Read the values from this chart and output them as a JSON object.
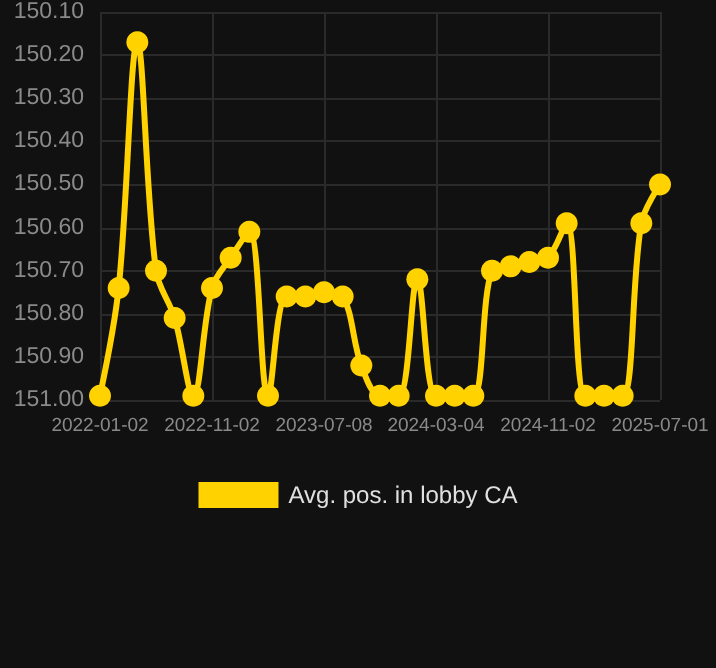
{
  "chart_data": {
    "type": "line",
    "categories": [
      "2022-01-02",
      null,
      null,
      null,
      null,
      null,
      "2022-11-02",
      null,
      null,
      null,
      null,
      null,
      "2023-07-08",
      null,
      null,
      null,
      null,
      null,
      "2024-03-04",
      null,
      null,
      null,
      null,
      null,
      "2024-11-02",
      null,
      null,
      null,
      null,
      null,
      "2025-07-01"
    ],
    "series": [
      {
        "name": "Avg. pos. in lobby CA",
        "color": "#ffd200",
        "values": [
          150.99,
          150.74,
          150.17,
          150.7,
          150.81,
          150.99,
          150.74,
          150.67,
          150.61,
          150.99,
          150.76,
          150.76,
          150.75,
          150.76,
          150.92,
          150.99,
          150.99,
          150.72,
          150.99,
          150.99,
          150.99,
          150.7,
          150.69,
          150.68,
          150.67,
          150.59,
          150.99,
          150.99,
          150.99,
          150.59,
          150.5
        ]
      }
    ],
    "ylim": [
      151.0,
      150.1
    ],
    "yticks": [
      {
        "value": 150.1,
        "label": "150.10"
      },
      {
        "value": 150.2,
        "label": "150.20"
      },
      {
        "value": 150.3,
        "label": "150.30"
      },
      {
        "value": 150.4,
        "label": "150.40"
      },
      {
        "value": 150.5,
        "label": "150.50"
      },
      {
        "value": 150.6,
        "label": "150.60"
      },
      {
        "value": 150.7,
        "label": "150.70"
      },
      {
        "value": 150.8,
        "label": "150.80"
      },
      {
        "value": 150.9,
        "label": "150.90"
      },
      {
        "value": 151.0,
        "label": "151.00"
      }
    ],
    "grid": true,
    "legend": "bottom",
    "marker": "circle",
    "line_style": "solid"
  }
}
